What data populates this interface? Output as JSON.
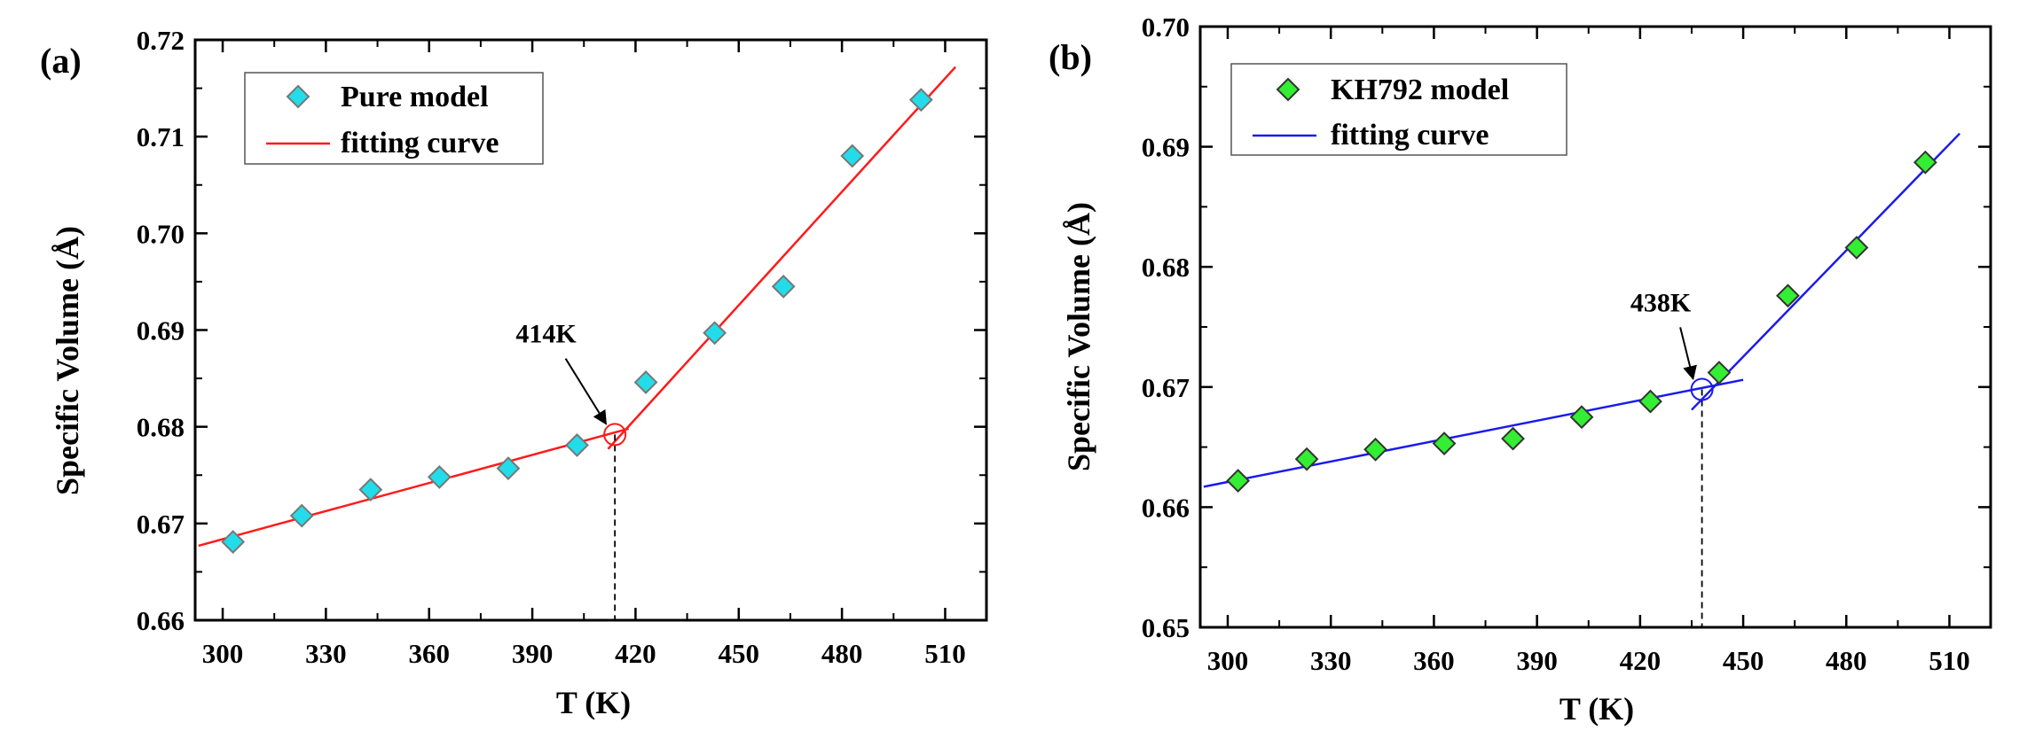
{
  "chart_data": [
    {
      "type": "scatter",
      "panel_label": "(a)",
      "xlabel": "T (K)",
      "ylabel": "Specific Volume (Å)",
      "xlim": [
        292,
        522
      ],
      "ylim": [
        0.66,
        0.72
      ],
      "x_ticks": [
        300,
        330,
        360,
        390,
        420,
        450,
        480,
        510
      ],
      "y_ticks": [
        0.66,
        0.67,
        0.68,
        0.69,
        0.7,
        0.71,
        0.72
      ],
      "x_tick_labels": [
        "300",
        "330",
        "360",
        "390",
        "420",
        "450",
        "480",
        "510"
      ],
      "y_tick_labels": [
        "0.66",
        "0.67",
        "0.68",
        "0.69",
        "0.70",
        "0.71",
        "0.72"
      ],
      "series": [
        {
          "name": "Pure model",
          "marker": "diamond",
          "color": "#22dde9",
          "edge_color": "#777777",
          "x": [
            303,
            323,
            343,
            363,
            383,
            403,
            423,
            443,
            463,
            483,
            503
          ],
          "y": [
            0.6681,
            0.6708,
            0.6735,
            0.6748,
            0.6757,
            0.6781,
            0.6846,
            0.6897,
            0.6945,
            0.708,
            0.7138
          ]
        }
      ],
      "fits": [
        {
          "name": "fitting curve",
          "color": "#ff1a1a",
          "x": [
            293,
            418
          ],
          "y": [
            0.6677,
            0.6798
          ]
        },
        {
          "name": "fitting curve",
          "color": "#ff1a1a",
          "x": [
            412,
            513
          ],
          "y": [
            0.6777,
            0.7172
          ]
        }
      ],
      "transition": {
        "label": "414K",
        "x": 414,
        "y": 0.6792,
        "color": "#ff1a1a"
      },
      "annotation": {
        "x": 394,
        "y": 0.6887
      },
      "legend": {
        "position": "top-left",
        "entries": [
          "Pure model",
          "fitting curve"
        ]
      }
    },
    {
      "type": "scatter",
      "panel_label": "(b)",
      "xlabel": "T (K)",
      "ylabel": "Specific Volume (Å)",
      "xlim": [
        292,
        522
      ],
      "ylim": [
        0.65,
        0.7
      ],
      "x_ticks": [
        300,
        330,
        360,
        390,
        420,
        450,
        480,
        510
      ],
      "y_ticks": [
        0.65,
        0.66,
        0.67,
        0.68,
        0.69,
        0.7
      ],
      "x_tick_labels": [
        "300",
        "330",
        "360",
        "390",
        "420",
        "450",
        "480",
        "510"
      ],
      "y_tick_labels": [
        "0.65",
        "0.66",
        "0.67",
        "0.68",
        "0.69",
        "0.70"
      ],
      "series": [
        {
          "name": "KH792 model",
          "marker": "diamond",
          "color": "#33ee33",
          "edge_color": "#333333",
          "x": [
            303,
            323,
            343,
            363,
            383,
            403,
            423,
            443,
            463,
            483,
            503
          ],
          "y": [
            0.6622,
            0.664,
            0.6648,
            0.6653,
            0.6657,
            0.6675,
            0.6688,
            0.6712,
            0.6776,
            0.6816,
            0.6887
          ]
        }
      ],
      "fits": [
        {
          "name": "fitting curve",
          "color": "#1a1aee",
          "x": [
            293,
            450
          ],
          "y": [
            0.6617,
            0.6706
          ]
        },
        {
          "name": "fitting curve",
          "color": "#1a1aee",
          "x": [
            435,
            513
          ],
          "y": [
            0.6681,
            0.6911
          ]
        }
      ],
      "transition": {
        "label": "438K",
        "x": 438,
        "y": 0.6698,
        "color": "#1a1aee"
      },
      "annotation": {
        "x": 426,
        "y": 0.6763
      },
      "legend": {
        "position": "top-left",
        "entries": [
          "KH792 model",
          "fitting curve"
        ]
      }
    }
  ]
}
